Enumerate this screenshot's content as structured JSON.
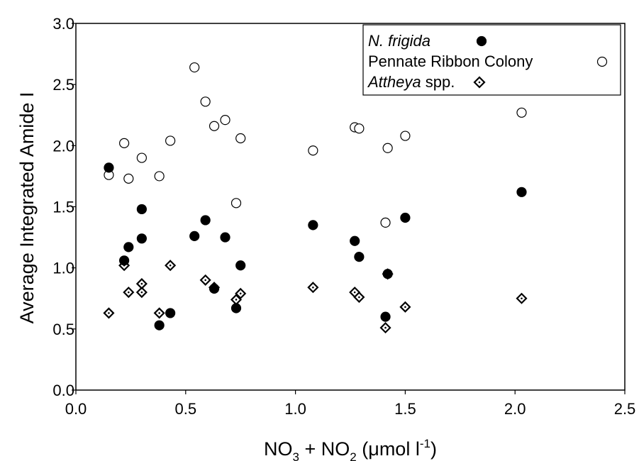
{
  "chart_data": {
    "type": "scatter",
    "xlabel": {
      "main": "NO",
      "sub1": "3",
      "mid": " + NO",
      "sub2": "2",
      "paren_open": " (",
      "mu": "μ",
      "unit": "mol l",
      "sup": "-1",
      "paren_close": ")"
    },
    "ylabel": "Average Integrated Amide I",
    "xlim": [
      0.0,
      2.5
    ],
    "ylim": [
      0.0,
      3.0
    ],
    "xticks": [
      "0.0",
      "0.5",
      "1.0",
      "1.5",
      "2.0",
      "2.5"
    ],
    "yticks": [
      "0.0",
      "0.5",
      "1.0",
      "1.5",
      "2.0",
      "2.5",
      "3.0"
    ],
    "grid": false,
    "legend_position": "top-right",
    "series": [
      {
        "name": "N. frigida",
        "name_italic": "N. frigida",
        "name_plain": "",
        "marker": "filled-circle",
        "color": "#000000",
        "x": [
          0.15,
          0.22,
          0.24,
          0.3,
          0.3,
          0.38,
          0.43,
          0.54,
          0.59,
          0.63,
          0.68,
          0.73,
          0.75,
          1.08,
          1.27,
          1.29,
          1.41,
          1.42,
          1.5,
          2.03
        ],
        "y": [
          1.82,
          1.06,
          1.17,
          1.48,
          1.24,
          0.53,
          0.63,
          1.26,
          1.39,
          0.83,
          1.25,
          0.67,
          1.02,
          1.35,
          1.22,
          1.09,
          0.6,
          0.95,
          1.41,
          1.62
        ]
      },
      {
        "name": "Pennate Ribbon Colony",
        "name_italic": "",
        "name_plain": "Pennate Ribbon Colony",
        "marker": "open-circle",
        "color": "#000000",
        "x": [
          0.15,
          0.22,
          0.24,
          0.3,
          0.38,
          0.43,
          0.54,
          0.59,
          0.63,
          0.68,
          0.73,
          0.75,
          1.08,
          1.27,
          1.29,
          1.41,
          1.42,
          1.5,
          2.03
        ],
        "y": [
          1.76,
          2.02,
          1.73,
          1.9,
          1.75,
          2.04,
          2.64,
          2.36,
          2.16,
          2.21,
          1.53,
          2.06,
          1.96,
          2.15,
          2.14,
          1.37,
          1.98,
          2.08,
          2.27
        ]
      },
      {
        "name": "Attheya spp.",
        "name_italic": "Attheya",
        "name_plain": " spp.",
        "marker": "open-diamond",
        "color": "#000000",
        "x": [
          0.15,
          0.22,
          0.24,
          0.3,
          0.3,
          0.38,
          0.43,
          0.59,
          0.63,
          0.73,
          0.75,
          1.08,
          1.27,
          1.29,
          1.41,
          1.42,
          1.5,
          2.03
        ],
        "y": [
          0.63,
          1.02,
          0.8,
          0.8,
          0.87,
          0.63,
          1.02,
          0.9,
          0.84,
          0.74,
          0.79,
          0.84,
          0.8,
          0.76,
          0.51,
          0.95,
          0.68,
          0.75
        ]
      }
    ]
  }
}
